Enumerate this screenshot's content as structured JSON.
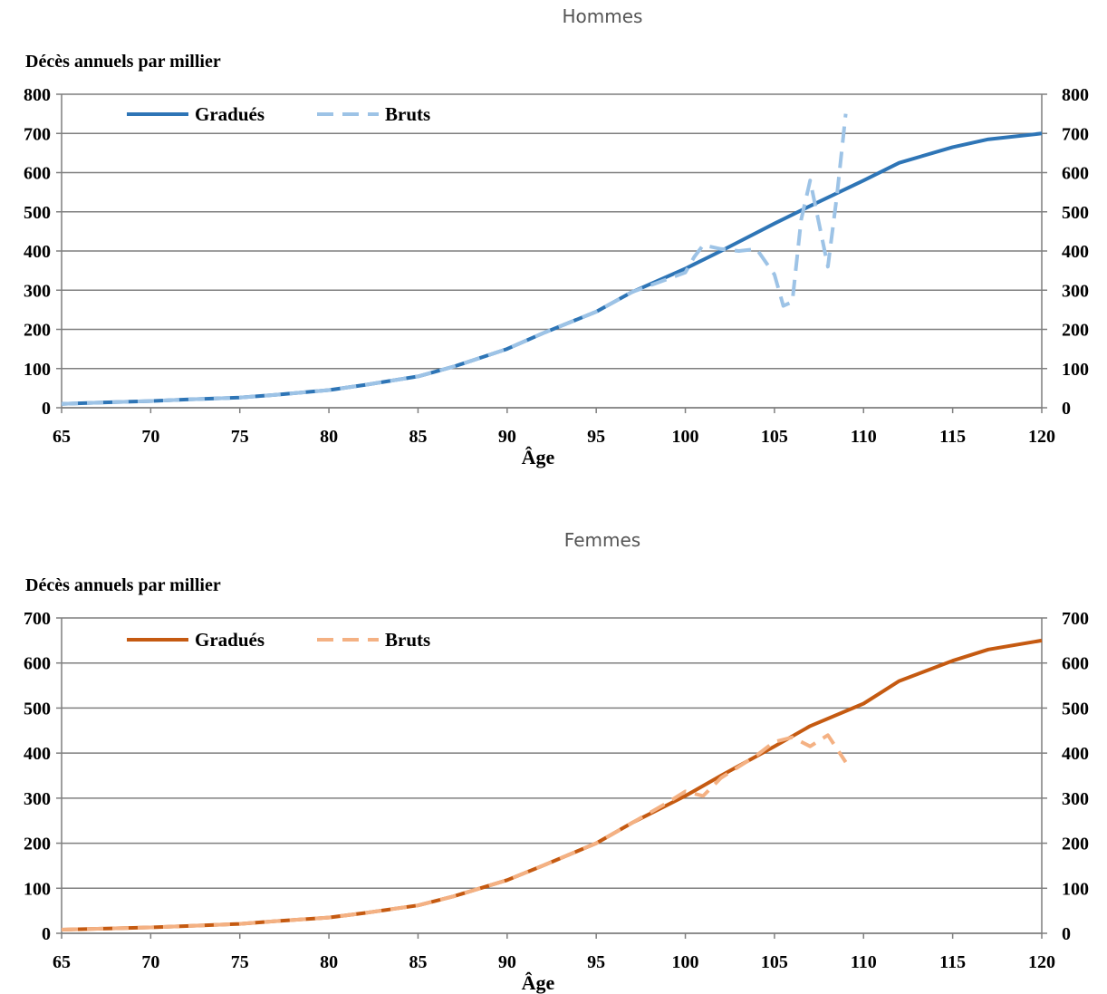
{
  "chart_data": [
    {
      "type": "line",
      "title": "Hommes",
      "ylabel": "Décès annuels par millier",
      "xlabel": "Âge",
      "xlim": [
        65,
        120
      ],
      "ylim": [
        0,
        800
      ],
      "xticks": [
        65,
        70,
        75,
        80,
        85,
        90,
        95,
        100,
        105,
        110,
        115,
        120
      ],
      "yticks": [
        0,
        100,
        200,
        300,
        400,
        500,
        600,
        700,
        800
      ],
      "grid": true,
      "legend_position": "top-left",
      "series": [
        {
          "name": "Gradués",
          "style": "solid",
          "color": "#2e75b6",
          "x": [
            65,
            67,
            70,
            72,
            75,
            77,
            80,
            82,
            85,
            87,
            90,
            92,
            95,
            97,
            100,
            102,
            105,
            107,
            110,
            112,
            115,
            117,
            120
          ],
          "values": [
            10,
            13,
            17,
            21,
            26,
            33,
            45,
            58,
            80,
            105,
            150,
            190,
            245,
            295,
            355,
            400,
            470,
            515,
            580,
            625,
            665,
            685,
            700
          ]
        },
        {
          "name": "Bruts",
          "style": "dashed",
          "color": "#9dc3e6",
          "x": [
            65,
            67,
            70,
            72,
            75,
            77,
            80,
            82,
            85,
            87,
            90,
            92,
            95,
            97,
            100,
            100.5,
            101,
            102,
            103,
            104,
            105,
            105.5,
            106,
            106.5,
            107,
            107.5,
            108,
            108.5,
            109
          ],
          "values": [
            10,
            13,
            17,
            21,
            26,
            33,
            45,
            58,
            80,
            105,
            150,
            190,
            245,
            295,
            345,
            385,
            415,
            405,
            400,
            405,
            340,
            260,
            270,
            480,
            580,
            470,
            360,
            540,
            750
          ]
        }
      ]
    },
    {
      "type": "line",
      "title": "Femmes",
      "ylabel": "Décès annuels par millier",
      "xlabel": "Âge",
      "xlim": [
        65,
        120
      ],
      "ylim": [
        0,
        700
      ],
      "xticks": [
        65,
        70,
        75,
        80,
        85,
        90,
        95,
        100,
        105,
        110,
        115,
        120
      ],
      "yticks": [
        0,
        100,
        200,
        300,
        400,
        500,
        600,
        700
      ],
      "grid": true,
      "legend_position": "top-left",
      "series": [
        {
          "name": "Gradués",
          "style": "solid",
          "color": "#c55a11",
          "x": [
            65,
            67,
            70,
            72,
            75,
            77,
            80,
            82,
            85,
            87,
            90,
            92,
            95,
            97,
            100,
            102,
            105,
            107,
            110,
            112,
            115,
            117,
            120
          ],
          "values": [
            8,
            10,
            13,
            16,
            21,
            27,
            35,
            45,
            62,
            82,
            118,
            150,
            200,
            245,
            305,
            350,
            415,
            460,
            510,
            560,
            605,
            630,
            650
          ]
        },
        {
          "name": "Bruts",
          "style": "dashed",
          "color": "#f4b183",
          "x": [
            65,
            67,
            70,
            72,
            75,
            77,
            80,
            82,
            85,
            87,
            90,
            92,
            95,
            97,
            99,
            100,
            101,
            102,
            103,
            104,
            105,
            106,
            107,
            108,
            109
          ],
          "values": [
            8,
            10,
            13,
            16,
            21,
            27,
            35,
            45,
            62,
            82,
            118,
            150,
            200,
            245,
            290,
            315,
            305,
            345,
            370,
            395,
            425,
            435,
            415,
            440,
            380
          ]
        }
      ]
    }
  ]
}
